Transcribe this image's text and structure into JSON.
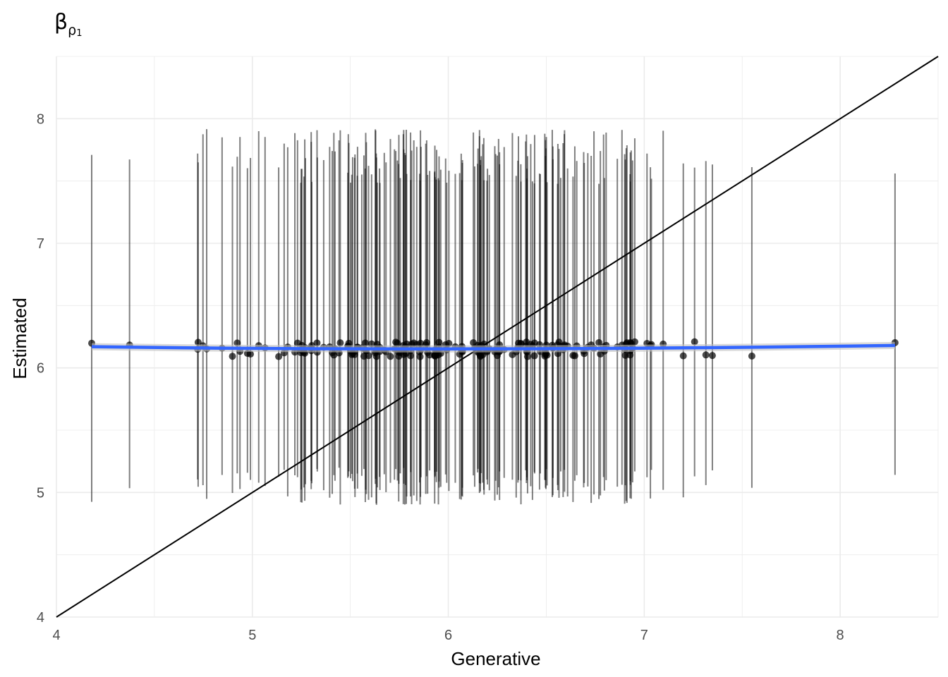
{
  "chart_data": {
    "type": "scatter",
    "title_main": "β",
    "title_sub": "ρ",
    "title_subsub": "1",
    "xlabel": "Generative",
    "ylabel": "Estimated",
    "xlim": [
      4,
      8.5
    ],
    "ylim": [
      4,
      8.5
    ],
    "x_ticks": [
      "4",
      "5",
      "6",
      "7",
      "8"
    ],
    "y_ticks": [
      "4",
      "5",
      "6",
      "7",
      "8"
    ],
    "grid": true,
    "identity_line": true,
    "smooth_line": {
      "color": "#3366ff",
      "start": [
        4.18,
        6.17
      ],
      "mid": [
        6.05,
        6.15
      ],
      "end": [
        8.28,
        6.18
      ]
    },
    "points_summary": {
      "count": 200,
      "estimated_mean": 6.15,
      "interval_low_typical": 5.05,
      "interval_high_typical": 7.7,
      "x_min": 4.18,
      "x_max": 8.28,
      "x_center": 6.0,
      "x_sd": 0.62
    },
    "colors": {
      "points": "#000000",
      "errorbars": "#000000",
      "smooth": "#3366ff",
      "grid": "#ebebeb",
      "identity": "#000000"
    }
  }
}
